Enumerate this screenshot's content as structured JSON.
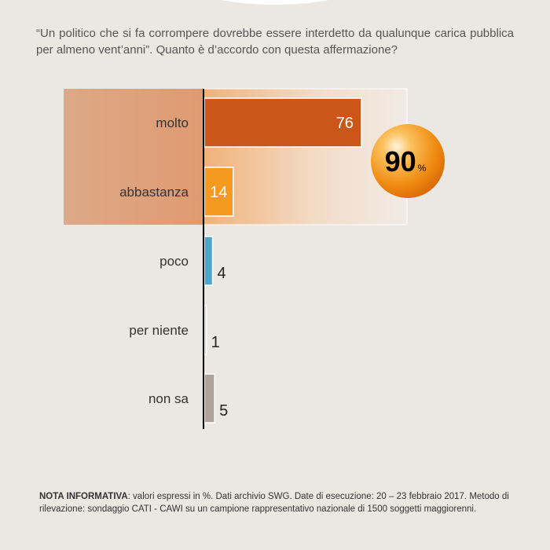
{
  "question": "“Un politico che si fa corrompere dovrebbe essere interdetto da qualunque carica pubblica per almeno vent’anni”. Quanto è d’accordo con questa affermazione?",
  "chart_data": {
    "type": "bar",
    "orientation": "horizontal",
    "categories": [
      "molto",
      "abbastanza",
      "poco",
      "per niente",
      "non sa"
    ],
    "values": [
      76,
      14,
      4,
      1,
      5
    ],
    "value_labels": [
      "76",
      "14",
      "4",
      "1",
      "5"
    ],
    "colors": [
      "#cc5618",
      "#f59a1e",
      "#4aa6cf",
      "#cccccc",
      "#b0a39c"
    ],
    "unit": "%",
    "grid": false,
    "group_total": {
      "categories": [
        "molto",
        "abbastanza"
      ],
      "value": "90",
      "unit": "%"
    }
  },
  "note": {
    "label": "NOTA INFORMATIVA",
    "text": ": valori espressi in %. Dati archivio SWG. Date di esecuzione: 20 – 23 febbraio 2017. Metodo di rilevazione: sondaggio CATI - CAWI su un campione rappresentativo nazionale di 1500 soggetti maggiorenni."
  }
}
